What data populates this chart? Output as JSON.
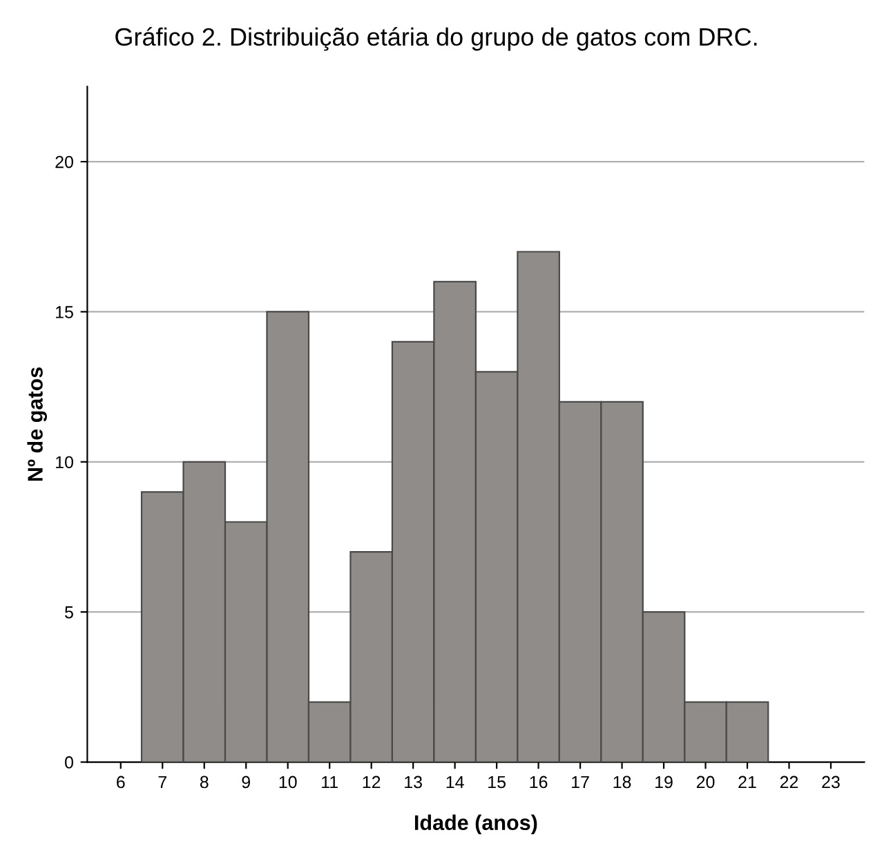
{
  "chart_data": {
    "type": "bar",
    "title": "Gráfico 2. Distribuição etária do grupo de gatos com DRC.",
    "xlabel": "Idade (anos)",
    "ylabel": "Nº de gatos",
    "categories": [
      "6",
      "7",
      "8",
      "9",
      "10",
      "11",
      "12",
      "13",
      "14",
      "15",
      "16",
      "17",
      "18",
      "19",
      "20",
      "21",
      "22",
      "23"
    ],
    "values": [
      null,
      9,
      10,
      8,
      15,
      2,
      7,
      14,
      16,
      13,
      17,
      12,
      12,
      5,
      2,
      2,
      null,
      null
    ],
    "color": "#8f8c8a",
    "ylim": [
      0,
      22.5
    ],
    "yticks": [
      0,
      5,
      10,
      15,
      20
    ],
    "grid": "y",
    "legend": false
  }
}
